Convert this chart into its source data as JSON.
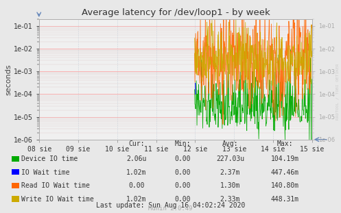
{
  "title": "Average latency for /dev/loop1 - by week",
  "ylabel": "seconds",
  "background_color": "#e8e8e8",
  "plot_background": "#f0f0f0",
  "x_tick_labels": [
    "08 sie",
    "09 sie",
    "10 sie",
    "11 sie",
    "12 sie",
    "13 sie",
    "14 sie",
    "15 sie"
  ],
  "ylim_min": 1e-06,
  "ylim_max": 0.2,
  "series": [
    {
      "name": "Device IO time",
      "color": "#00aa00"
    },
    {
      "name": "IO Wait time",
      "color": "#0000ff"
    },
    {
      "name": "Read IO Wait time",
      "color": "#ff6600"
    },
    {
      "name": "Write IO Wait time",
      "color": "#ccaa00"
    }
  ],
  "legend_table": {
    "headers": [
      "Cur:",
      "Min:",
      "Avg:",
      "Max:"
    ],
    "rows": [
      [
        "Device IO time",
        "2.06u",
        "0.00",
        "227.03u",
        "104.19m"
      ],
      [
        "IO Wait time",
        "1.02m",
        "0.00",
        "2.37m",
        "447.46m"
      ],
      [
        "Read IO Wait time",
        "0.00",
        "0.00",
        "1.30m",
        "140.80m"
      ],
      [
        "Write IO Wait time",
        "1.02m",
        "0.00",
        "2.33m",
        "448.31m"
      ]
    ]
  },
  "last_update": "Last update: Sun Aug 16 04:02:24 2020",
  "munin_version": "Munin 2.0.49",
  "watermark": "RRDTOOL / TOBI OETIKER"
}
